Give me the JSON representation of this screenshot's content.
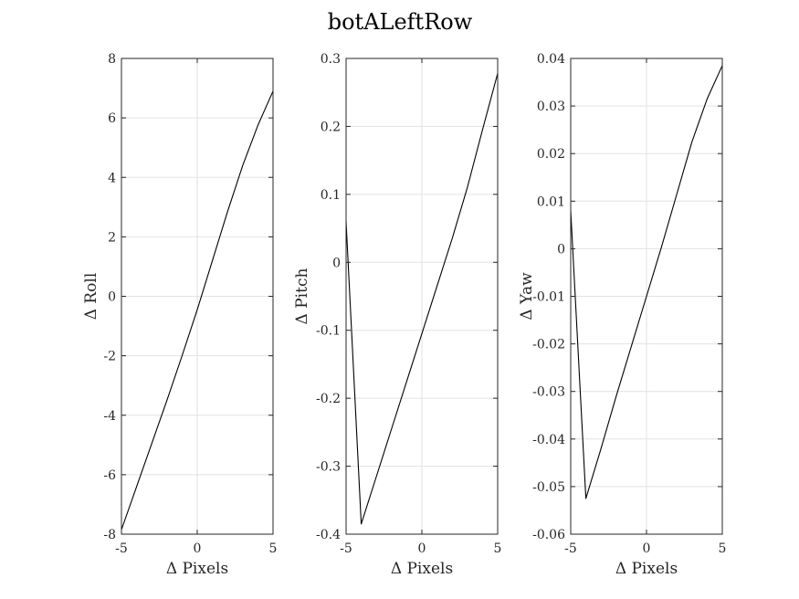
{
  "figure": {
    "title": "botALeftRow"
  },
  "chart_data": [
    {
      "type": "line",
      "title": "",
      "xlabel": "Δ Pixels",
      "ylabel": "Δ Roll",
      "xlim": [
        -5,
        5
      ],
      "ylim": [
        -8,
        8
      ],
      "xticks": [
        "-5",
        "0",
        "5"
      ],
      "yticks": [
        "-8",
        "-6",
        "-4",
        "-2",
        "0",
        "2",
        "4",
        "6",
        "8"
      ],
      "grid": true,
      "line_color": "#000000",
      "x": [
        -5,
        -4,
        -3,
        -2,
        -1,
        0,
        1,
        2,
        3,
        4,
        5
      ],
      "y": [
        -7.85,
        -6.4,
        -4.95,
        -3.5,
        -2.0,
        -0.45,
        1.2,
        2.85,
        4.4,
        5.75,
        6.9
      ]
    },
    {
      "type": "line",
      "title": "",
      "xlabel": "Δ Pixels",
      "ylabel": "Δ Pitch",
      "xlim": [
        -5,
        5
      ],
      "ylim": [
        -0.4,
        0.3
      ],
      "xticks": [
        "-5",
        "0",
        "5"
      ],
      "yticks": [
        "-0.4",
        "-0.3",
        "-0.2",
        "-0.1",
        "0",
        "0.1",
        "0.2",
        "0.3"
      ],
      "grid": true,
      "line_color": "#000000",
      "x": [
        -5,
        -4,
        -3,
        -2,
        -1,
        0,
        1,
        2,
        3,
        4,
        5
      ],
      "y": [
        0.06,
        -0.385,
        -0.315,
        -0.245,
        -0.175,
        -0.105,
        -0.035,
        0.035,
        0.11,
        0.195,
        0.278
      ]
    },
    {
      "type": "line",
      "title": "",
      "xlabel": "Δ Pixels",
      "ylabel": "Δ Yaw",
      "xlim": [
        -5,
        5
      ],
      "ylim": [
        -0.06,
        0.04
      ],
      "xticks": [
        "-5",
        "0",
        "5"
      ],
      "yticks": [
        "-0.06",
        "-0.05",
        "-0.04",
        "-0.03",
        "-0.02",
        "-0.01",
        "0",
        "0.01",
        "0.02",
        "0.03",
        "0.04"
      ],
      "grid": true,
      "line_color": "#000000",
      "x": [
        -5,
        -4,
        -3,
        -2,
        -1,
        0,
        1,
        2,
        3,
        4,
        5
      ],
      "y": [
        0.008,
        -0.0525,
        -0.042,
        -0.031,
        -0.0205,
        -0.01,
        0.0005,
        0.0115,
        0.0225,
        0.0315,
        0.0385
      ]
    }
  ]
}
